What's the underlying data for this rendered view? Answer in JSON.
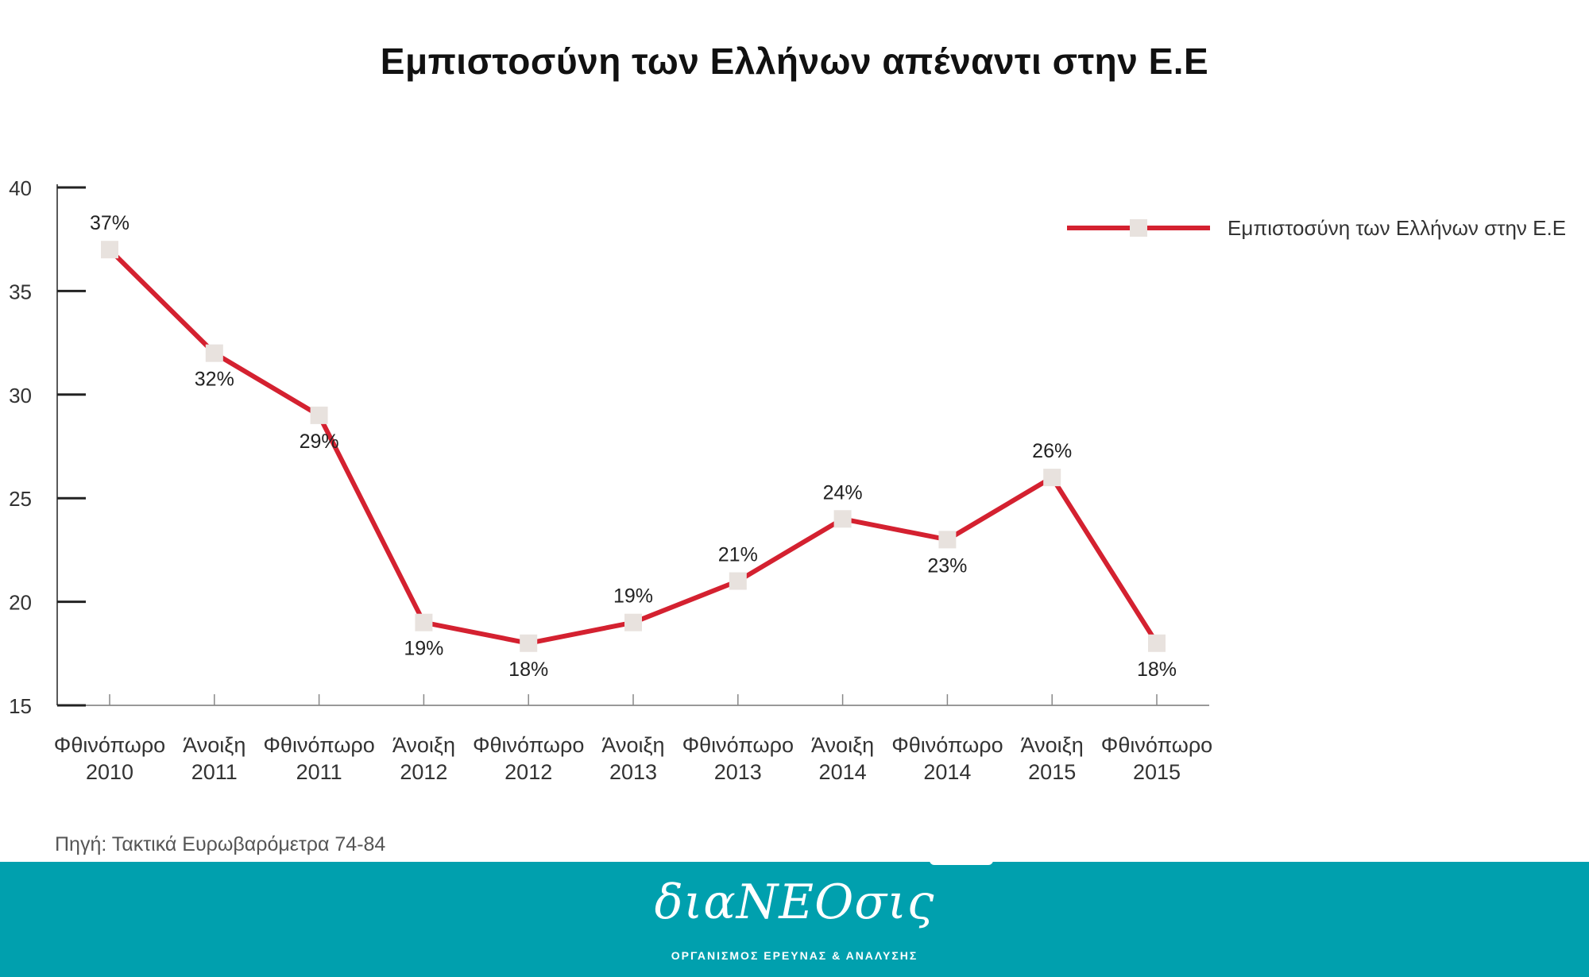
{
  "title": "Εμπιστοσύνη των Ελλήνων απέναντι στην Ε.Ε",
  "source": "Πηγή: Τακτικά Ευρωβαρόμετρα 74-84",
  "footer": {
    "brand": "διαNEOσις",
    "tagline": "ΟΡΓΑΝΙΣΜΟΣ ΕΡΕΥΝΑΣ & ΑΝΑΛΥΣΗΣ",
    "background_color": "#00a0ae"
  },
  "colors": {
    "line": "#d42130",
    "marker": "#e8e2de",
    "axis": "#222222",
    "text": "#222222"
  },
  "chart_data": {
    "type": "line",
    "title": "Εμπιστοσύνη των Ελλήνων απέναντι στην Ε.Ε",
    "categories": [
      [
        "Φθινόπωρο",
        "2010"
      ],
      [
        "Άνοιξη",
        "2011"
      ],
      [
        "Φθινόπωρο",
        "2011"
      ],
      [
        "Άνοιξη",
        "2012"
      ],
      [
        "Φθινόπωρο",
        "2012"
      ],
      [
        "Άνοιξη",
        "2013"
      ],
      [
        "Φθινόπωρο",
        "2013"
      ],
      [
        "Άνοιξη",
        "2014"
      ],
      [
        "Φθινόπωρο",
        "2014"
      ],
      [
        "Άνοιξη",
        "2015"
      ],
      [
        "Φθινόπωρο",
        "2015"
      ]
    ],
    "series": [
      {
        "name": "Εμπιστοσύνη των Ελλήνων στην Ε.Ε",
        "values": [
          37,
          32,
          29,
          19,
          18,
          19,
          21,
          24,
          23,
          26,
          18
        ],
        "labels": [
          "37%",
          "32%",
          "29%",
          "19%",
          "18%",
          "19%",
          "21%",
          "24%",
          "23%",
          "26%",
          "18%"
        ],
        "label_position": [
          "above",
          "below",
          "below",
          "below",
          "below",
          "above",
          "above",
          "above",
          "below",
          "above",
          "below"
        ]
      }
    ],
    "ylim": [
      15,
      40
    ],
    "yticks": [
      "15",
      "20",
      "25",
      "30",
      "35",
      "40"
    ],
    "xlabel": "",
    "ylabel": "",
    "grid": false,
    "legend_position": "top-right"
  }
}
